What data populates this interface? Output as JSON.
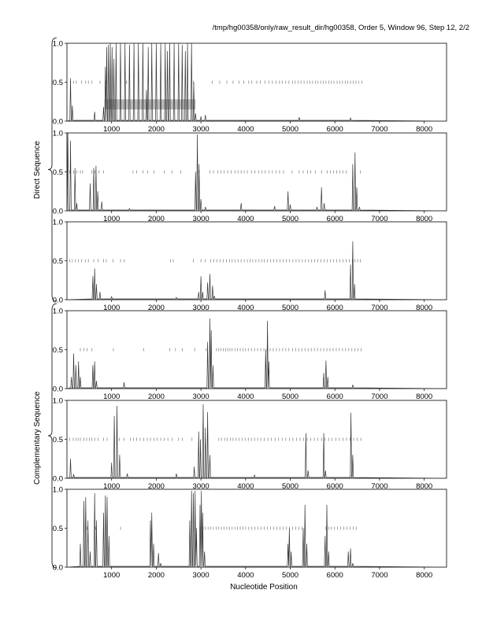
{
  "header": {
    "title": "/tmp/hg00358/only/raw_result_dir/hg00358, Order 5, Window 96, Step 12, 2/2"
  },
  "groups": [
    {
      "label": "Direct Sequence",
      "panels": [
        0,
        1,
        2
      ]
    },
    {
      "label": "Complementary Sequence",
      "panels": [
        3,
        4,
        5
      ]
    }
  ],
  "chart_data": {
    "type": "line",
    "xlabel": "Nucleotide Position",
    "xlim": [
      0,
      8500
    ],
    "ylim": [
      0,
      1.0
    ],
    "xticks": [
      1000,
      2000,
      3000,
      4000,
      5000,
      6000,
      7000,
      8000
    ],
    "yticks": [
      0.0,
      0.5,
      1.0
    ],
    "ytick_labels": [
      "0.0",
      "0.5",
      "1.0"
    ],
    "grid": false,
    "colors": {
      "line": "#333333",
      "ticks": "#777777",
      "band": "#bbbbbb"
    },
    "panels": [
      {
        "peaks": [
          [
            80,
            0.55
          ],
          [
            120,
            0.2
          ],
          [
            620,
            0.12
          ],
          [
            820,
            0.18
          ],
          [
            860,
            0.7
          ],
          [
            890,
            0.95
          ],
          [
            930,
            0.98
          ],
          [
            970,
            1.0
          ],
          [
            1010,
            0.95
          ],
          [
            1050,
            0.8
          ],
          [
            1100,
            1.0
          ],
          [
            1200,
            1.0
          ],
          [
            1300,
            1.0
          ],
          [
            1400,
            0.98
          ],
          [
            1500,
            1.0
          ],
          [
            1600,
            1.0
          ],
          [
            1700,
            1.0
          ],
          [
            1780,
            0.4
          ],
          [
            1820,
            0.95
          ],
          [
            1900,
            1.0
          ],
          [
            2000,
            1.0
          ],
          [
            2100,
            1.0
          ],
          [
            2200,
            1.0
          ],
          [
            2250,
            0.9
          ],
          [
            2300,
            1.0
          ],
          [
            2400,
            1.0
          ],
          [
            2500,
            1.0
          ],
          [
            2580,
            0.98
          ],
          [
            2650,
            0.9
          ],
          [
            2700,
            1.0
          ],
          [
            2790,
            1.0
          ],
          [
            2840,
            0.5
          ],
          [
            2880,
            0.1
          ],
          [
            3000,
            0.06
          ],
          [
            3100,
            0.08
          ],
          [
            5200,
            0.05
          ],
          [
            6350,
            0.04
          ]
        ],
        "ticks": [
          80,
          150,
          210,
          330,
          420,
          480,
          560,
          740,
          880,
          1200,
          1330,
          2830,
          3250,
          3420,
          3580,
          3720,
          3850,
          3960,
          4070,
          4140,
          4250,
          4330,
          4430,
          4520,
          4600,
          4680,
          4760,
          4820,
          4900,
          4970,
          5050,
          5110,
          5180,
          5240,
          5310,
          5380,
          5440,
          5500,
          5560,
          5620,
          5680,
          5740,
          5800,
          5860,
          5920,
          5980,
          6050,
          6110,
          6170,
          6230,
          6290,
          6350,
          6410,
          6470,
          6530,
          6600
        ],
        "band": {
          "x0": 840,
          "x1": 2880,
          "y0": 0.15,
          "y1": 0.28
        }
      },
      {
        "peaks": [
          [
            20,
            1.0
          ],
          [
            80,
            0.9
          ],
          [
            180,
            0.55
          ],
          [
            220,
            0.1
          ],
          [
            520,
            0.35
          ],
          [
            600,
            0.55
          ],
          [
            650,
            0.58
          ],
          [
            690,
            0.25
          ],
          [
            780,
            0.12
          ],
          [
            1400,
            0.03
          ],
          [
            2880,
            0.5
          ],
          [
            2920,
            0.98
          ],
          [
            2960,
            0.6
          ],
          [
            3000,
            0.15
          ],
          [
            3100,
            0.05
          ],
          [
            3900,
            0.1
          ],
          [
            4650,
            0.06
          ],
          [
            4950,
            0.25
          ],
          [
            5000,
            0.08
          ],
          [
            5600,
            0.05
          ],
          [
            5700,
            0.3
          ],
          [
            5760,
            0.1
          ],
          [
            6400,
            0.6
          ],
          [
            6450,
            0.75
          ],
          [
            6490,
            0.3
          ],
          [
            6550,
            0.05
          ]
        ],
        "ticks": [
          60,
          150,
          220,
          300,
          350,
          560,
          620,
          720,
          820,
          1480,
          1560,
          1700,
          1810,
          1950,
          2180,
          2350,
          2550,
          2950,
          3200,
          3280,
          3380,
          3450,
          3520,
          3600,
          3680,
          3760,
          3830,
          3900,
          3970,
          4040,
          4130,
          4210,
          4290,
          4370,
          4440,
          4520,
          4600,
          4680,
          4760,
          4850,
          5040,
          5200,
          5290,
          5390,
          5460,
          5560,
          5700,
          5830,
          5900,
          5970,
          6040,
          6110,
          6180,
          6250,
          6400,
          6570
        ]
      },
      {
        "peaks": [
          [
            580,
            0.3
          ],
          [
            620,
            0.4
          ],
          [
            660,
            0.2
          ],
          [
            740,
            0.1
          ],
          [
            1000,
            0.04
          ],
          [
            2450,
            0.03
          ],
          [
            2950,
            0.1
          ],
          [
            3000,
            0.3
          ],
          [
            3040,
            0.1
          ],
          [
            3150,
            0.22
          ],
          [
            3200,
            0.33
          ],
          [
            3260,
            0.18
          ],
          [
            3300,
            0.05
          ],
          [
            5780,
            0.12
          ],
          [
            6350,
            0.45
          ],
          [
            6400,
            0.75
          ],
          [
            6440,
            0.2
          ]
        ],
        "ticks": [
          60,
          120,
          190,
          260,
          330,
          410,
          480,
          600,
          700,
          820,
          880,
          1030,
          1200,
          1280,
          2320,
          2380,
          2830,
          3000,
          3100,
          3220,
          3290,
          3360,
          3430,
          3500,
          3570,
          3640,
          3700,
          3760,
          3830,
          3900,
          3970,
          4040,
          4100,
          4160,
          4230,
          4300,
          4360,
          4420,
          4490,
          4560,
          4630,
          4700,
          4770,
          4840,
          4910,
          4980,
          5060,
          5130,
          5200,
          5270,
          5340,
          5410,
          5480,
          5550,
          5620,
          5690,
          5760,
          5830,
          5900,
          5970,
          6040,
          6110,
          6180,
          6250,
          6320,
          6390,
          6450,
          6510,
          6570
        ]
      },
      {
        "peaks": [
          [
            100,
            0.15
          ],
          [
            150,
            0.45
          ],
          [
            200,
            0.3
          ],
          [
            260,
            0.35
          ],
          [
            300,
            0.15
          ],
          [
            580,
            0.3
          ],
          [
            620,
            0.35
          ],
          [
            660,
            0.1
          ],
          [
            1280,
            0.08
          ],
          [
            3150,
            0.6
          ],
          [
            3200,
            0.9
          ],
          [
            3230,
            0.75
          ],
          [
            3270,
            0.3
          ],
          [
            4450,
            0.5
          ],
          [
            4490,
            0.87
          ],
          [
            4520,
            0.35
          ],
          [
            5750,
            0.2
          ],
          [
            5800,
            0.36
          ],
          [
            5840,
            0.15
          ],
          [
            6400,
            0.05
          ]
        ],
        "ticks": [
          300,
          380,
          450,
          560,
          1040,
          1720,
          2300,
          2430,
          2580,
          2860,
          3120,
          3350,
          3400,
          3450,
          3500,
          3550,
          3600,
          3650,
          3700,
          3760,
          3820,
          3880,
          3940,
          4000,
          4060,
          4130,
          4200,
          4270,
          4340,
          4410,
          4480,
          4550,
          4620,
          4690,
          4760,
          4830,
          4900,
          4970,
          5050,
          5120,
          5190,
          5260,
          5330,
          5400,
          5470,
          5540,
          5610,
          5680,
          5750,
          5820,
          5890,
          5960,
          6030,
          6100,
          6170,
          6240,
          6310,
          6380,
          6450,
          6520,
          6590
        ]
      },
      {
        "peaks": [
          [
            80,
            0.25
          ],
          [
            150,
            0.05
          ],
          [
            1000,
            0.2
          ],
          [
            1060,
            0.8
          ],
          [
            1120,
            0.93
          ],
          [
            1180,
            0.3
          ],
          [
            1350,
            0.06
          ],
          [
            2450,
            0.06
          ],
          [
            2850,
            0.15
          ],
          [
            2950,
            0.6
          ],
          [
            2990,
            0.5
          ],
          [
            3050,
            0.95
          ],
          [
            3100,
            0.65
          ],
          [
            3150,
            0.85
          ],
          [
            3200,
            0.3
          ],
          [
            4200,
            0.04
          ],
          [
            5350,
            0.58
          ],
          [
            5400,
            0.1
          ],
          [
            5750,
            0.58
          ],
          [
            5790,
            0.1
          ],
          [
            6360,
            0.84
          ],
          [
            6400,
            0.3
          ]
        ],
        "ticks": [
          60,
          140,
          200,
          250,
          300,
          380,
          440,
          500,
          560,
          620,
          700,
          820,
          900,
          1170,
          1280,
          1420,
          1490,
          1560,
          1640,
          1720,
          1800,
          1870,
          1950,
          2020,
          2100,
          2180,
          2260,
          2350,
          2500,
          2580,
          2800,
          3050,
          3400,
          3460,
          3530,
          3590,
          3660,
          3720,
          3790,
          3850,
          3920,
          3990,
          4060,
          4130,
          4200,
          4270,
          4340,
          4420,
          4500,
          4580,
          4660,
          4740,
          4820,
          4900,
          4980,
          5060,
          5140,
          5220,
          5300,
          5380,
          5460,
          5540,
          5620,
          5700,
          5780,
          5860,
          5940,
          6020,
          6100,
          6180,
          6260,
          6340,
          6420,
          6500,
          6580
        ]
      },
      {
        "peaks": [
          [
            300,
            0.3
          ],
          [
            380,
            0.85
          ],
          [
            420,
            0.9
          ],
          [
            470,
            0.6
          ],
          [
            520,
            0.2
          ],
          [
            620,
            0.95
          ],
          [
            660,
            0.6
          ],
          [
            820,
            0.7
          ],
          [
            860,
            0.92
          ],
          [
            900,
            0.9
          ],
          [
            940,
            0.4
          ],
          [
            1870,
            0.6
          ],
          [
            1900,
            0.7
          ],
          [
            1940,
            0.3
          ],
          [
            2050,
            0.18
          ],
          [
            2100,
            0.05
          ],
          [
            2750,
            0.6
          ],
          [
            2790,
            0.98
          ],
          [
            2830,
            0.95
          ],
          [
            2870,
            0.98
          ],
          [
            2900,
            0.5
          ],
          [
            2980,
            0.8
          ],
          [
            3010,
            0.98
          ],
          [
            3040,
            0.7
          ],
          [
            3080,
            0.2
          ],
          [
            4950,
            0.3
          ],
          [
            4980,
            0.5
          ],
          [
            5020,
            0.2
          ],
          [
            5290,
            0.5
          ],
          [
            5330,
            0.8
          ],
          [
            5370,
            0.3
          ],
          [
            5780,
            0.4
          ],
          [
            5820,
            0.8
          ],
          [
            5860,
            0.2
          ],
          [
            6300,
            0.2
          ],
          [
            6350,
            0.24
          ],
          [
            6400,
            0.05
          ]
        ],
        "ticks": [
          380,
          450,
          640,
          820,
          1200,
          2870,
          3000,
          3050,
          3100,
          3160,
          3220,
          3280,
          3340,
          3400,
          3460,
          3520,
          3580,
          3640,
          3700,
          3760,
          3820,
          3880,
          3940,
          4000,
          4070,
          4140,
          4210,
          4280,
          4350,
          4420,
          4490,
          4560,
          4630,
          4700,
          4770,
          4840,
          4910,
          4980,
          5050,
          5120,
          5190,
          5260,
          5330,
          5800,
          5860,
          5920,
          5990,
          6060,
          6130,
          6200,
          6270,
          6340,
          6410,
          6480
        ]
      }
    ]
  }
}
